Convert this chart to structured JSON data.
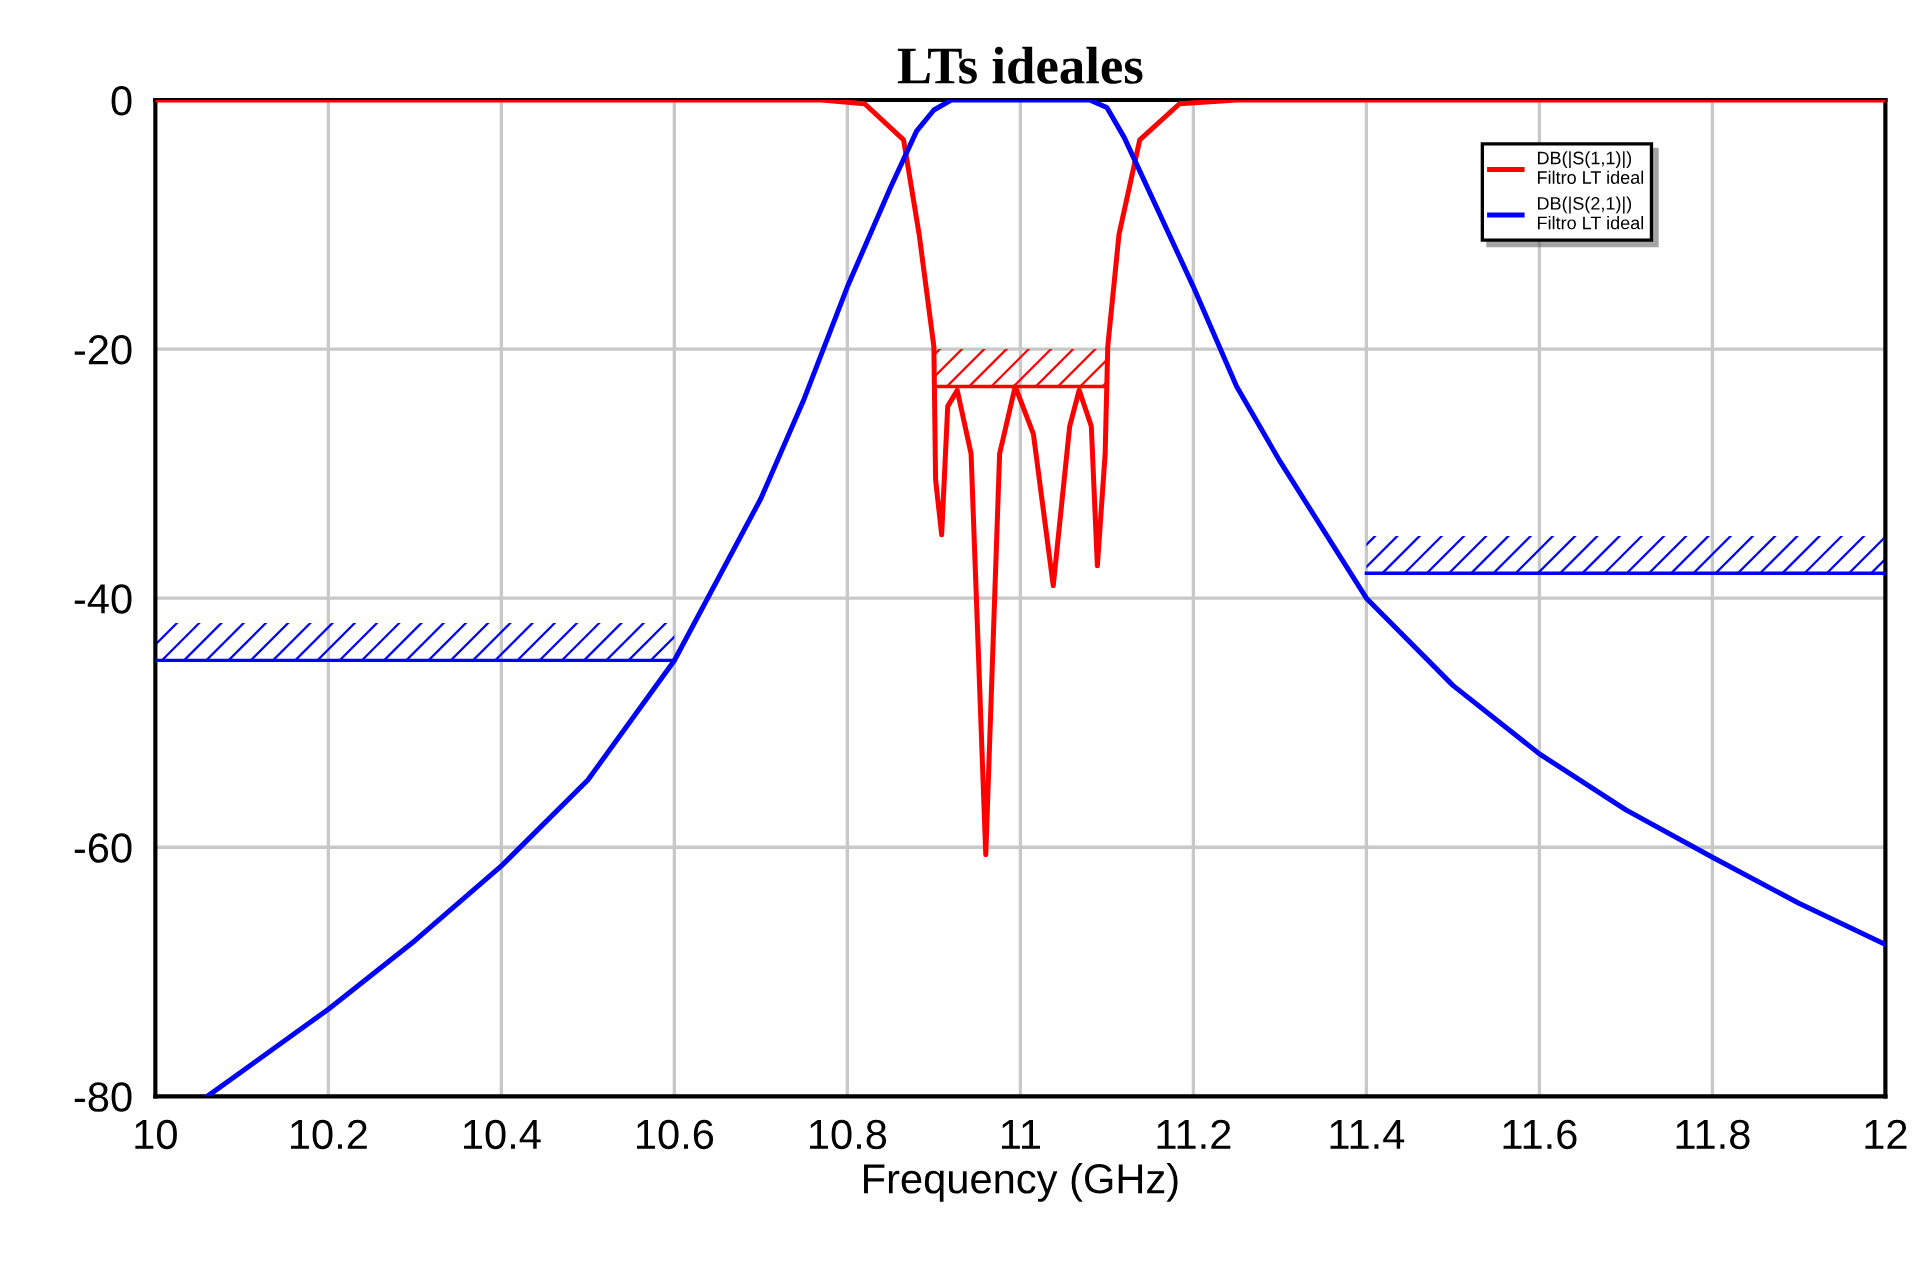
{
  "chart_data": {
    "type": "line",
    "title": "LTs ideales",
    "xlabel": "Frequency (GHz)",
    "xlim": [
      10,
      12
    ],
    "ylim": [
      -80,
      0
    ],
    "xticks": [
      10,
      10.2,
      10.4,
      10.6,
      10.8,
      11,
      11.2,
      11.4,
      11.6,
      11.8,
      12
    ],
    "yticks": [
      -80,
      -60,
      -40,
      -20,
      0
    ],
    "grid": true,
    "legend": "top right",
    "series": [
      {
        "name": "DB(|S(1,1)|)\nFiltro LT ideal",
        "color": "#ff0000",
        "x": [
          10,
          10.77,
          10.82,
          10.865,
          10.883,
          10.9,
          10.902,
          10.909,
          10.916,
          10.927,
          10.943,
          10.96,
          10.976,
          10.994,
          11.015,
          11.038,
          11.057,
          11.068,
          11.082,
          11.089,
          11.098,
          11.101,
          11.114,
          11.138,
          11.184,
          11.25,
          12
        ],
        "values": [
          0,
          0,
          -0.3,
          -3.2,
          -10.8,
          -19.8,
          -30.5,
          -34.9,
          -24.6,
          -23.3,
          -28.4,
          -60.6,
          -28.4,
          -23,
          -26.8,
          -39,
          -26.2,
          -23.3,
          -26.2,
          -37.4,
          -28.4,
          -19.8,
          -10.8,
          -3.2,
          -0.3,
          0,
          0
        ]
      },
      {
        "name": "DB(|S(2,1)|)\nFiltro LT ideal",
        "color": "#0000ff",
        "x": [
          10.06,
          10.1,
          10.2,
          10.3,
          10.4,
          10.5,
          10.6,
          10.7,
          10.75,
          10.8,
          10.85,
          10.88,
          10.9,
          10.92,
          11.08,
          11.1,
          11.12,
          11.15,
          11.2,
          11.25,
          11.3,
          11.4,
          11.5,
          11.6,
          11.7,
          11.8,
          11.9,
          12
        ],
        "values": [
          -80,
          -78,
          -73,
          -67.5,
          -61.5,
          -54.6,
          -45,
          -32,
          -24,
          -15,
          -7,
          -2.5,
          -0.8,
          0,
          0,
          -0.6,
          -3,
          -7.5,
          -15,
          -23,
          -29,
          -40,
          -47,
          -52.5,
          -57,
          -60.8,
          -64.5,
          -67.8
        ]
      },
      {
        "color": "#0000ff",
        "x": [
          10,
          10.6
        ],
        "values": [
          -45,
          -45
        ],
        "lower": [
          -45,
          -45
        ],
        "upper": [
          -42,
          -42
        ]
      },
      {
        "color": "#ff0000",
        "x": [
          10.9,
          11.1
        ],
        "values": [
          -23,
          -23
        ],
        "lower": [
          -23,
          -23
        ],
        "upper": [
          -20,
          -20
        ]
      },
      {
        "color": "#0000ff",
        "x": [
          11.4,
          12
        ],
        "values": [
          -38,
          -38
        ],
        "lower": [
          -38,
          -38
        ],
        "upper": [
          -35,
          -35
        ]
      }
    ]
  }
}
